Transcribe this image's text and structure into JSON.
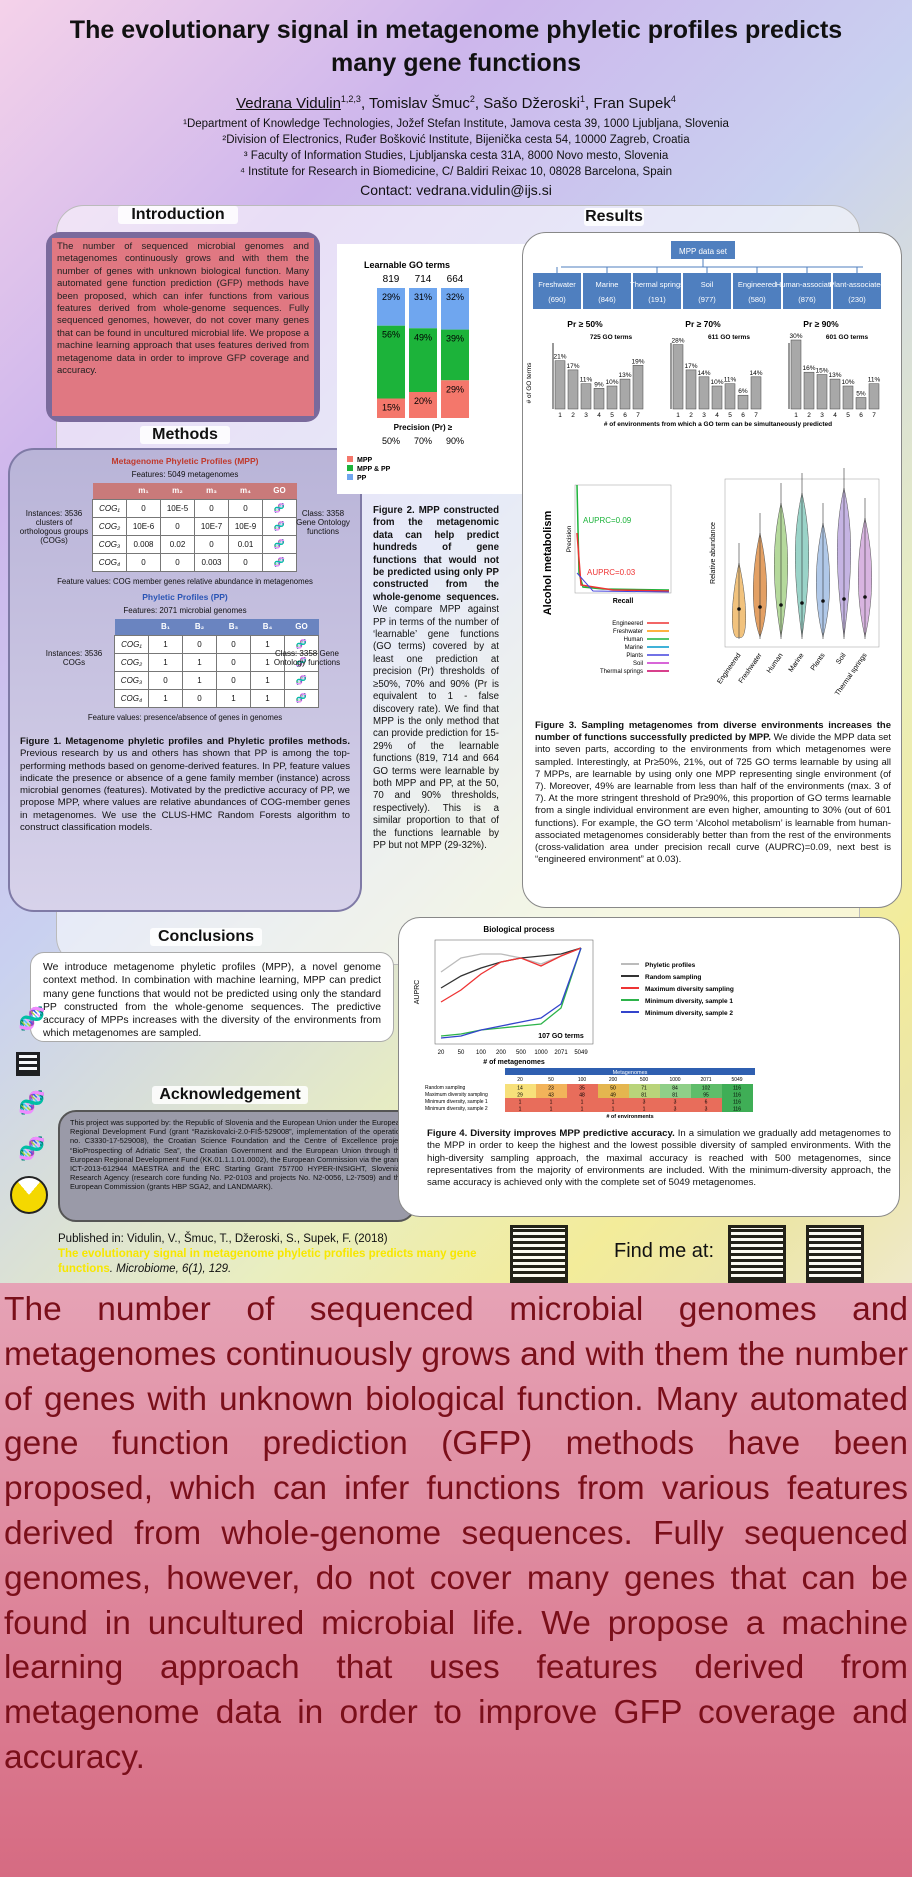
{
  "poster": {
    "title": "The evolutionary signal in metagenome phyletic profiles predicts many gene functions",
    "authors": [
      {
        "name": "Vedrana Vidulin",
        "sup": "1,2,3"
      },
      {
        "name": "Tomislav Šmuc",
        "sup": "2"
      },
      {
        "name": "Sašo Džeroski",
        "sup": "1"
      },
      {
        "name": "Fran Supek",
        "sup": "4"
      }
    ],
    "affiliations": [
      "¹Department of Knowledge Technologies, Jožef Stefan Institute, Jamova cesta 39, 1000 Ljubljana, Slovenia",
      "²Division of Electronics, Ruđer Bošković Institute, Bijenička cesta 54, 10000 Zagreb, Croatia",
      "³ Faculty of Information Studies, Ljubljanska cesta 31A, 8000 Novo mesto, Slovenia",
      "⁴ Institute for Research in Biomedicine, C/ Baldiri Reixac 10, 08028 Barcelona, Spain"
    ],
    "contact": "Contact: vedrana.vidulin@ijs.si"
  },
  "sections": {
    "intro": "Introduction",
    "methods": "Methods",
    "results": "Results",
    "conclusions": "Conclusions",
    "ack": "Acknowledgement"
  },
  "intro_text": "The number of sequenced microbial genomes and metagenomes continuously grows and with them the number of genes with unknown biological function. Many automated gene function prediction (GFP) methods have been proposed, which can infer functions from various features derived from whole-genome sequences. Fully sequenced genomes, however, do not cover many genes that can be found in uncultured microbial life. We propose a machine learning approach that uses features derived from metagenome data in order to improve GFP coverage and accuracy.",
  "methods": {
    "mpp_title": "Metagenome Phyletic Profiles (MPP)",
    "mpp_features": "Features: 5049 metagenomes",
    "mpp_cols": [
      "m₁",
      "m₂",
      "m₃",
      "m₄",
      "GO"
    ],
    "mpp_rows": [
      [
        "COG₁",
        "0",
        "10E-5",
        "0",
        "0"
      ],
      [
        "COG₂",
        "10E-6",
        "0",
        "10E-7",
        "10E-9"
      ],
      [
        "COG₃",
        "0.008",
        "0.02",
        "0",
        "0.01"
      ],
      [
        "COG₄",
        "0",
        "0",
        "0.003",
        "0"
      ]
    ],
    "mpp_instances": "Instances: 3536 clusters of orthologous groups (COGs)",
    "mpp_class": "Class: 3358 Gene Ontology functions",
    "mpp_values": "Feature values: COG member genes relative abundance in metagenomes",
    "pp_title": "Phyletic Profiles (PP)",
    "pp_features": "Features: 2071 microbial genomes",
    "pp_cols": [
      "B₁",
      "B₂",
      "B₃",
      "B₄",
      "GO"
    ],
    "pp_rows": [
      [
        "COG₁",
        "1",
        "0",
        "0",
        "1"
      ],
      [
        "COG₂",
        "1",
        "1",
        "0",
        "1"
      ],
      [
        "COG₃",
        "0",
        "1",
        "0",
        "1"
      ],
      [
        "COG₄",
        "1",
        "0",
        "1",
        "1"
      ]
    ],
    "pp_instances": "Instances: 3536 COGs",
    "pp_class": "Class: 3358 Gene Ontology functions",
    "pp_values": "Feature values: presence/absence of genes in genomes",
    "fig1_bold": "Figure 1. Metagenome phyletic profiles and Phyletic profiles methods.",
    "fig1_text": " Previous research by us and others has shown that PP is among the top-performing methods based on genome-derived features. In PP, feature values indicate the presence or absence of a gene family member (instance) across microbial genomes (features). Motivated by the predictive accuracy of PP, we propose MPP, where values are relative abundances of COG-member genes in metagenomes. We use the CLUS-HMC Random Forests algorithm to construct classification models."
  },
  "fig2": {
    "title": "Learnable GO terms",
    "totals": [
      "819",
      "714",
      "664"
    ],
    "xlabel": "Precision (Pr) ≥",
    "legend": [
      "MPP",
      "MPP & PP",
      "PP"
    ],
    "colors": {
      "MPP": "#f4776b",
      "Both": "#1cb33a",
      "PP": "#6fa6ef"
    },
    "caption_bold": "Figure 2. MPP constructed from the metagenomic data can help predict hundreds of gene functions that would not be predicted using only PP constructed from the whole-genome sequences.",
    "caption_text": " We compare MPP against PP in terms of the number of ‘learnable’ gene functions (GO terms) covered by at least one prediction at precision (Pr) thresholds of ≥50%, 70% and 90% (Pr is equivalent to 1 - false discovery rate). We find that MPP is the only method that can provide prediction for 15-29% of the learnable functions (819, 714 and 664 GO terms were learnable by both MPP and PP, at the 50, 70 and 90% thresholds, respectively). This is a similar proportion to that of the functions learnable by PP but not MPP (29-32%)."
  },
  "fig3": {
    "root": "MPP data set",
    "envs": [
      [
        "Freshwater",
        "(690)"
      ],
      [
        "Marine",
        "(846)"
      ],
      [
        "Thermal springs",
        "(191)"
      ],
      [
        "Soil",
        "(977)"
      ],
      [
        "Engineered",
        "(580)"
      ],
      [
        "Human-associated",
        "(876)"
      ],
      [
        "Plant-associated",
        "(230)"
      ]
    ],
    "panel_titles": [
      "Pr ≥ 50%",
      "Pr ≥ 70%",
      "Pr ≥ 90%"
    ],
    "panel_go": [
      "725 GO terms",
      "611 GO terms",
      "601 GO terms"
    ],
    "ylabel": "# of GO terms",
    "xlabel": "# of environments from which a GO term can be simultaneously predicted",
    "pr_side_label": "Alcohol metabolism",
    "auprc1": "AUPRC=0.09",
    "auprc2": "AUPRC=0.03",
    "recall": "Recall",
    "precision": "Precision",
    "legend": [
      "Engineered",
      "Freshwater",
      "Human",
      "Marine",
      "Plants",
      "Soil",
      "Thermal springs"
    ],
    "violin_ylabel": "Relative abundance",
    "violin_cats": [
      "Engineered",
      "Freshwater",
      "Human",
      "Marine",
      "Plants",
      "Soil",
      "Thermal springs"
    ],
    "caption_bold": "Figure 3. Sampling metagenomes from diverse environments increases the number of functions successfully predicted by MPP.",
    "caption_text": " We divide the MPP data set into seven parts, according to the environments from which metagenomes were sampled. Interestingly, at Pr≥50%, 21%, out of 725 GO terms learnable by using all 7 MPPs, are learnable by using only one MPP representing single environment (of 7). Moreover, 49% are learnable from less than half of the environments (max. 3 of 7). At the more stringent threshold of Pr≥90%, this proportion of GO terms learnable from a single individual environment are even higher, amounting to 30% (out of 601 functions). For example, the GO term ‘Alcohol metabolism’ is learnable from human-associated metagenomes considerably better than from the rest of the environments (cross-validation area under precision recall curve (AUPRC)=0.09, next best is “engineered environment” at 0.03)."
  },
  "fig4": {
    "title": "Biological process",
    "ylabel": "AUPRC",
    "xlabel": "# of metagenomes",
    "annot": "107 GO terms",
    "x": [
      "20",
      "50",
      "100",
      "200",
      "500",
      "1000",
      "2071",
      "5049"
    ],
    "legend": [
      "Phyletic profiles",
      "Random sampling",
      "Maximum diversity sampling",
      "Minimum diversity, sample 1",
      "Minimum diversity, sample 2"
    ],
    "table_head": "Metagenomes",
    "table_rows": [
      [
        "Random sampling",
        "14",
        "23",
        "35",
        "50",
        "71",
        "84",
        "102",
        "116"
      ],
      [
        "Maximum diversity sampling",
        "29",
        "43",
        "48",
        "49",
        "81",
        "81",
        "95",
        "116"
      ],
      [
        "Minimum diversity, sample 1",
        "1",
        "1",
        "1",
        "1",
        "3",
        "3",
        "6",
        "116"
      ],
      [
        "Minimum diversity, sample 2",
        "1",
        "1",
        "1",
        "1",
        "1",
        "3",
        "3",
        "116"
      ]
    ],
    "table_foot": "# of environments",
    "caption_bold": "Figure 4. Diversity improves MPP predictive accuracy.",
    "caption_text": " In a simulation we gradually add metagenomes to the MPP in order to keep the highest and the lowest possible diversity of sampled environments. With the high-diversity sampling approach, the maximal accuracy is reached with 500 metagenomes, since representatives from the majority of environments are included. With the minimum-diversity approach, the same accuracy is achieved only with the complete set of 5049 metagenomes."
  },
  "chart_data": [
    {
      "type": "bar",
      "stacked": true,
      "title": "Learnable GO terms",
      "categories": [
        "50%",
        "70%",
        "90%"
      ],
      "xlabel": "Precision (Pr) ≥",
      "series": [
        {
          "name": "MPP",
          "values": [
            15,
            20,
            29
          ]
        },
        {
          "name": "MPP & PP",
          "values": [
            56,
            49,
            39
          ]
        },
        {
          "name": "PP",
          "values": [
            29,
            31,
            32
          ]
        }
      ],
      "ylim": [
        0,
        100
      ]
    },
    {
      "type": "bar",
      "title": "Pr ≥ 50%",
      "categories": [
        "1",
        "2",
        "3",
        "4",
        "5",
        "6",
        "7"
      ],
      "values": [
        21,
        17,
        11,
        9,
        10,
        13,
        19
      ]
    },
    {
      "type": "bar",
      "title": "Pr ≥ 70%",
      "categories": [
        "1",
        "2",
        "3",
        "4",
        "5",
        "6",
        "7"
      ],
      "values": [
        28,
        17,
        14,
        10,
        11,
        6,
        14
      ]
    },
    {
      "type": "bar",
      "title": "Pr ≥ 90%",
      "categories": [
        "1",
        "2",
        "3",
        "4",
        "5",
        "6",
        "7"
      ],
      "values": [
        30,
        16,
        15,
        13,
        10,
        5,
        11
      ]
    }
  ],
  "conclusions_text": "We introduce metagenome phyletic profiles (MPP), a novel genome context method. In combination with machine learning, MPP can predict many gene functions that would not be predicted using only the standard PP constructed from the whole-genome sequences. The predictive accuracy of MPPs increases with the diversity of the environments from which metagenomes are sampled.",
  "ack_text": "This project was supported by: the Republic of Slovenia and the European Union under the European Regional Development Fund (grant “Raziskovalci-2.0-FIŠ-529008”, implementation of the operation no. C3330-17-529008), the Croatian Science Foundation and the Centre of Excellence project “BioProspecting of Adriatic Sea”, the Croatian Government and the European Union through the European Regional Development Fund (KK.01.1.1.01.0002), the European Commission via the grants ICT-2013-612944 MAESTRA and the ERC Starting Grant 757700 HYPER-INSIGHT, Slovenian Research Agency (research core funding No. P2-0103 and projects No. N2-0056, L2-7509) and the European Commission (grants HBP SGA2, and LANDMARK).",
  "publication": {
    "prefix": "Published in: Vidulin, V., Šmuc, T., Džeroski, S., Supek, F. (2018)",
    "title": "The evolutionary signal in metagenome phyletic profiles predicts many gene functions",
    "journal": ". Microbiome, 6(1), 129."
  },
  "find_me": "Find me at:"
}
